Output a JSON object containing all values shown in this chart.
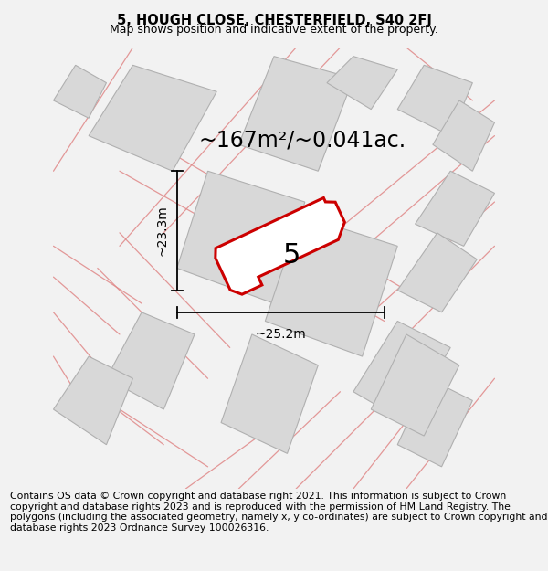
{
  "title": "5, HOUGH CLOSE, CHESTERFIELD, S40 2FJ",
  "subtitle": "Map shows position and indicative extent of the property.",
  "footer": "Contains OS data © Crown copyright and database right 2021. This information is subject to Crown copyright and database rights 2023 and is reproduced with the permission of HM Land Registry. The polygons (including the associated geometry, namely x, y co-ordinates) are subject to Crown copyright and database rights 2023 Ordnance Survey 100026316.",
  "area_text": "~167m²/~0.041ac.",
  "label": "5",
  "dim_width": "~25.2m",
  "dim_height": "~23.3m",
  "bg_color": "#f2f2f2",
  "map_bg": "#ffffff",
  "plot_fill": "#d8d8d8",
  "plot_edge": "#b0b0b0",
  "road_color": "#e08888",
  "subject_edge": "#cc0000",
  "subject_fill": "#ffffff",
  "title_fontsize": 10.5,
  "subtitle_fontsize": 9,
  "footer_fontsize": 7.8,
  "area_fontsize": 17,
  "label_fontsize": 22,
  "dim_fontsize": 10
}
